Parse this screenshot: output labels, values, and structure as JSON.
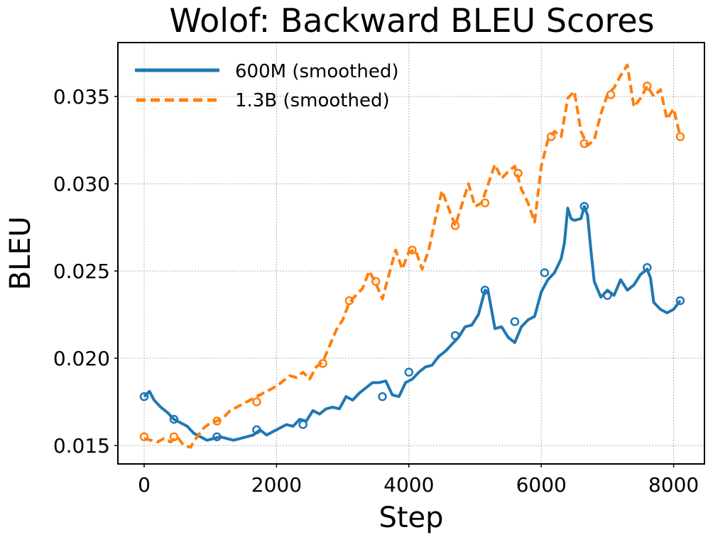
{
  "chart_data": {
    "type": "line",
    "title": "Wolof: Backward BLEU Scores",
    "xlabel": "Step",
    "ylabel": "BLEU",
    "xlim": [
      -400,
      8450
    ],
    "ylim": [
      0.0139,
      0.038
    ],
    "xticks": [
      0,
      2000,
      4000,
      6000,
      8000
    ],
    "xtick_labels": [
      "0",
      "2000",
      "4000",
      "6000",
      "8000"
    ],
    "yticks": [
      0.015,
      0.02,
      0.025,
      0.03,
      0.035
    ],
    "ytick_labels": [
      "0.015",
      "0.020",
      "0.025",
      "0.030",
      "0.035"
    ],
    "grid": true,
    "legend_position": "upper left",
    "series": [
      {
        "name": "600M (smoothed)",
        "color": "#1f77b4",
        "linestyle": "solid",
        "x": [
          0,
          80,
          150,
          250,
          350,
          450,
          550,
          650,
          750,
          850,
          950,
          1050,
          1150,
          1250,
          1350,
          1450,
          1550,
          1650,
          1750,
          1850,
          1950,
          2050,
          2150,
          2250,
          2350,
          2450,
          2550,
          2650,
          2750,
          2850,
          2950,
          3050,
          3150,
          3250,
          3350,
          3450,
          3550,
          3650,
          3750,
          3850,
          3950,
          4050,
          4150,
          4250,
          4350,
          4450,
          4550,
          4650,
          4750,
          4850,
          4950,
          5050,
          5150,
          5200,
          5300,
          5400,
          5500,
          5600,
          5700,
          5800,
          5900,
          6000,
          6100,
          6200,
          6300,
          6350,
          6400,
          6450,
          6500,
          6600,
          6650,
          6700,
          6750,
          6800,
          6900,
          7000,
          7100,
          7200,
          7300,
          7400,
          7500,
          7600,
          7650,
          7700,
          7800,
          7900,
          8000,
          8100
        ],
        "values": [
          0.0178,
          0.0181,
          0.0176,
          0.0172,
          0.0169,
          0.0165,
          0.0163,
          0.0161,
          0.0157,
          0.0155,
          0.0153,
          0.0154,
          0.0155,
          0.0154,
          0.0153,
          0.0154,
          0.0155,
          0.0156,
          0.0159,
          0.0156,
          0.0158,
          0.016,
          0.0162,
          0.0161,
          0.0165,
          0.0164,
          0.017,
          0.0168,
          0.0171,
          0.0172,
          0.0171,
          0.0178,
          0.0176,
          0.018,
          0.0183,
          0.0186,
          0.0186,
          0.0187,
          0.0179,
          0.0178,
          0.0186,
          0.0188,
          0.0192,
          0.0195,
          0.0196,
          0.0201,
          0.0204,
          0.0208,
          0.0212,
          0.0218,
          0.0219,
          0.0225,
          0.0239,
          0.0238,
          0.0217,
          0.0218,
          0.0212,
          0.0209,
          0.0218,
          0.0222,
          0.0224,
          0.0238,
          0.0245,
          0.0249,
          0.0257,
          0.0266,
          0.0286,
          0.028,
          0.0279,
          0.028,
          0.0287,
          0.0282,
          0.0262,
          0.0244,
          0.0235,
          0.0239,
          0.0236,
          0.0245,
          0.0239,
          0.0242,
          0.0248,
          0.0251,
          0.0246,
          0.0232,
          0.0228,
          0.0226,
          0.0228,
          0.0233
        ]
      },
      {
        "name": "1.3B (smoothed)",
        "color": "#ff7f0e",
        "linestyle": "dashed",
        "x": [
          0,
          100,
          200,
          300,
          400,
          500,
          600,
          700,
          800,
          900,
          1000,
          1100,
          1200,
          1300,
          1400,
          1500,
          1600,
          1700,
          1800,
          1900,
          2000,
          2100,
          2200,
          2300,
          2400,
          2500,
          2600,
          2700,
          2800,
          2900,
          3000,
          3100,
          3200,
          3300,
          3400,
          3500,
          3600,
          3700,
          3800,
          3900,
          4000,
          4100,
          4200,
          4300,
          4400,
          4500,
          4600,
          4700,
          4800,
          4900,
          5000,
          5100,
          5200,
          5300,
          5400,
          5500,
          5600,
          5700,
          5800,
          5900,
          6000,
          6100,
          6200,
          6300,
          6400,
          6500,
          6600,
          6700,
          6800,
          6900,
          7000,
          7100,
          7200,
          7300,
          7400,
          7500,
          7600,
          7700,
          7800,
          7900,
          8000,
          8100
        ],
        "values": [
          0.0154,
          0.0153,
          0.0152,
          0.0154,
          0.0152,
          0.0155,
          0.015,
          0.0149,
          0.0155,
          0.016,
          0.0163,
          0.0164,
          0.0166,
          0.017,
          0.0172,
          0.0174,
          0.0176,
          0.0178,
          0.018,
          0.0182,
          0.0184,
          0.0187,
          0.019,
          0.0189,
          0.0192,
          0.0188,
          0.0195,
          0.0198,
          0.0207,
          0.0216,
          0.0222,
          0.0232,
          0.0236,
          0.024,
          0.025,
          0.0243,
          0.0234,
          0.0248,
          0.0262,
          0.0251,
          0.0261,
          0.0262,
          0.0251,
          0.0262,
          0.028,
          0.0296,
          0.0286,
          0.0276,
          0.0288,
          0.03,
          0.0287,
          0.0289,
          0.03,
          0.0311,
          0.0303,
          0.0307,
          0.031,
          0.0297,
          0.0289,
          0.0278,
          0.031,
          0.0325,
          0.033,
          0.0327,
          0.0349,
          0.0353,
          0.033,
          0.0322,
          0.0325,
          0.034,
          0.0351,
          0.0355,
          0.0362,
          0.0368,
          0.0344,
          0.0349,
          0.0356,
          0.035,
          0.0354,
          0.0337,
          0.0343,
          0.0327
        ]
      }
    ],
    "markers": {
      "600M (smoothed)": [
        [
          0,
          0.0178
        ],
        [
          450,
          0.0165
        ],
        [
          1100,
          0.0155
        ],
        [
          1700,
          0.0159
        ],
        [
          2400,
          0.0162
        ],
        [
          3600,
          0.0178
        ],
        [
          4000,
          0.0192
        ],
        [
          4700,
          0.0213
        ],
        [
          5150,
          0.0239
        ],
        [
          5600,
          0.0221
        ],
        [
          6050,
          0.0249
        ],
        [
          6650,
          0.0287
        ],
        [
          7000,
          0.0236
        ],
        [
          7600,
          0.0252
        ],
        [
          8100,
          0.0233
        ]
      ],
      "1.3B (smoothed)": [
        [
          0,
          0.0155
        ],
        [
          450,
          0.0155
        ],
        [
          1100,
          0.0164
        ],
        [
          1700,
          0.0175
        ],
        [
          2700,
          0.0197
        ],
        [
          3100,
          0.0233
        ],
        [
          3500,
          0.0244
        ],
        [
          4050,
          0.0262
        ],
        [
          4700,
          0.0276
        ],
        [
          5150,
          0.0289
        ],
        [
          5650,
          0.0306
        ],
        [
          6150,
          0.0327
        ],
        [
          6650,
          0.0323
        ],
        [
          7050,
          0.0351
        ],
        [
          7600,
          0.0356
        ],
        [
          8100,
          0.0327
        ]
      ]
    }
  },
  "legend": {
    "items": [
      {
        "label": "600M (smoothed)",
        "color": "#1f77b4",
        "dash": "solid"
      },
      {
        "label": "1.3B (smoothed)",
        "color": "#ff7f0e",
        "dash": "dashed"
      }
    ]
  }
}
